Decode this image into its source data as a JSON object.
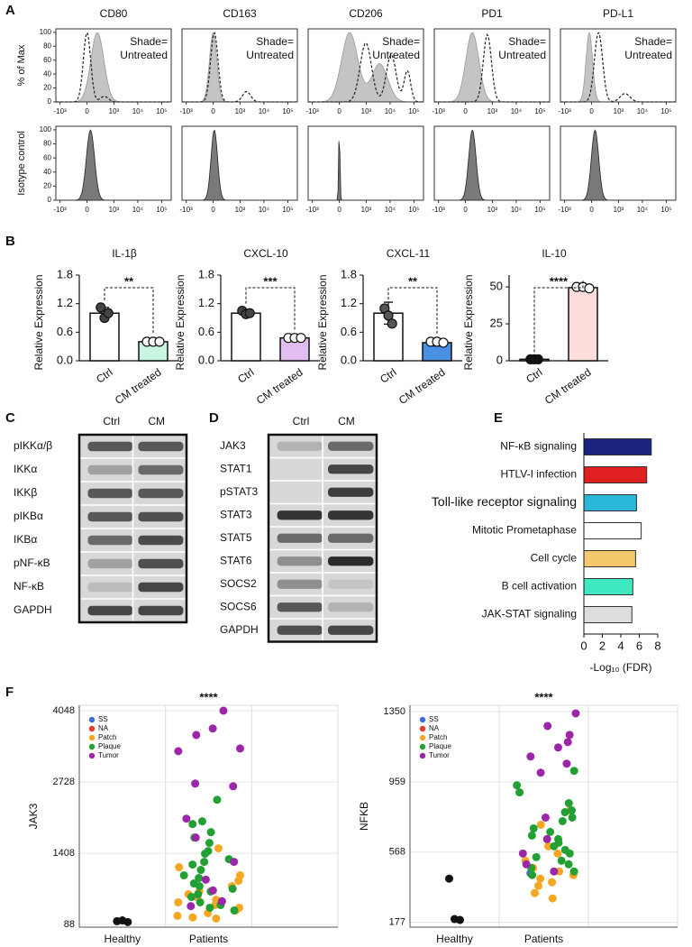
{
  "panel_labels": [
    "A",
    "B",
    "C",
    "D",
    "E",
    "F"
  ],
  "flow": {
    "markers": [
      "CD80",
      "CD163",
      "CD206",
      "PD1",
      "PD-L1"
    ],
    "shade_label": [
      "Shade=",
      "Untreated"
    ],
    "y_label_top": "% of Max",
    "y_label_bottom": "Isotype control",
    "ylim": [
      0,
      105
    ],
    "yticks": [
      0,
      20,
      40,
      60,
      80,
      100
    ],
    "xlim": [
      -1500,
      250000
    ],
    "xticks": [
      {
        "value": -1000,
        "label": "-10³"
      },
      0,
      {
        "value": 1000,
        "label": "10³"
      },
      {
        "value": 10000,
        "label": "10⁴"
      },
      {
        "value": 100000,
        "label": "10⁵"
      }
    ]
  },
  "western_blots": [
    {
      "columns": [
        "Ctrl",
        "CM"
      ],
      "rows": [
        "pIKKα/β",
        "IKKα",
        "IKKβ",
        "pIKBα",
        "IKBα",
        "pNF-κB",
        "NF-κB",
        "GAPDH"
      ]
    },
    {
      "columns": [
        "Ctrl",
        "CM"
      ],
      "rows": [
        "JAK3",
        "STAT1",
        "pSTAT3",
        "STAT3",
        "STAT5",
        "STAT6",
        "SOCS2",
        "SOCS6",
        "GAPDH"
      ]
    }
  ],
  "chart_data": [
    {
      "type": "bar",
      "title": "IL-1β",
      "y_label": "Relative Expression",
      "categories": [
        "Ctrl",
        "CM treated"
      ],
      "values": [
        1.0,
        0.4
      ],
      "errors": [
        0.12,
        0.02
      ],
      "points": [
        [
          1.12,
          0.9,
          1.0
        ],
        [
          0.4,
          0.4,
          0.4
        ]
      ],
      "colors": [
        "#ffffff",
        "#c8f5e0"
      ],
      "point_colors": [
        "#444444",
        "#ffffff"
      ],
      "significance": "**",
      "ylim": [
        0,
        1.8
      ],
      "yticks": [
        {
          "value": 0,
          "label": "0.0"
        },
        0.6,
        1.2,
        1.8
      ]
    },
    {
      "type": "bar",
      "title": "CXCL-10",
      "y_label": "Relative Expression",
      "categories": [
        "Ctrl",
        "CM treated"
      ],
      "values": [
        1.0,
        0.48
      ],
      "errors": [
        0.05,
        0.02
      ],
      "points": [
        [
          1.05,
          0.98,
          1.0
        ],
        [
          0.48,
          0.48,
          0.48
        ]
      ],
      "colors": [
        "#ffffff",
        "#e2bdf2"
      ],
      "point_colors": [
        "#444444",
        "#ffffff"
      ],
      "significance": "***",
      "ylim": [
        0,
        1.8
      ],
      "yticks": [
        {
          "value": 0,
          "label": "0.0"
        },
        0.6,
        1.2,
        1.8
      ]
    },
    {
      "type": "bar",
      "title": "CXCL-11",
      "y_label": "Relative Expression",
      "categories": [
        "Ctrl",
        "CM treated"
      ],
      "values": [
        1.0,
        0.38
      ],
      "errors": [
        0.23,
        0.07
      ],
      "points": [
        [
          1.1,
          0.95,
          0.78
        ],
        [
          0.4,
          0.4,
          0.38
        ]
      ],
      "colors": [
        "#ffffff",
        "#4a90e2"
      ],
      "point_colors": [
        "#555555",
        "#ffffff"
      ],
      "significance": "**",
      "ylim": [
        0,
        1.8
      ],
      "yticks": [
        {
          "value": 0,
          "label": "0.0"
        },
        0.6,
        1.2,
        1.8
      ]
    },
    {
      "type": "bar",
      "title": "IL-10",
      "y_label": "Relative Expression",
      "categories": [
        "Ctrl",
        "CM treated"
      ],
      "values": [
        1.0,
        49.5
      ],
      "errors": [
        0.3,
        1.0
      ],
      "points": [
        [
          1.0,
          1.0,
          1.0
        ],
        [
          50,
          50,
          49
        ]
      ],
      "colors": [
        "#ffffff",
        "#fddcdc"
      ],
      "point_colors": [
        "#111111",
        "#ffffff"
      ],
      "significance": "****",
      "ylim": [
        0,
        58
      ],
      "yticks": [
        0,
        25,
        50
      ]
    },
    {
      "type": "hbar",
      "categories": [
        "NF-κB signaling",
        "HTLV-I infection",
        "Toll-like receptor signaling",
        "Mitotic Prometaphase",
        "Cell cycle",
        "B cell activation",
        "JAK-STAT signaling"
      ],
      "values": [
        7.3,
        6.8,
        5.7,
        6.2,
        5.6,
        5.3,
        5.2
      ],
      "colors": [
        "#1a237e",
        "#e02020",
        "#29b6d8",
        "#ffffff",
        "#f5c96b",
        "#3ee8c0",
        "#dddddd"
      ],
      "xlim": [
        0,
        8
      ],
      "xticks": [
        0,
        2,
        4,
        6,
        8
      ],
      "x_label": "-Log₁₀ (FDR)"
    },
    {
      "type": "strip",
      "y_label": "JAK3",
      "categories": [
        "Healthy",
        "Patients"
      ],
      "significance": "****",
      "ylim": [
        40,
        4150
      ],
      "yticks": [
        88,
        1408,
        2728,
        4048
      ],
      "healthy": {
        "color": "#111111",
        "values": [
          150,
          165,
          135
        ]
      },
      "series": [
        {
          "name": "SS",
          "color": "#3a6fd8",
          "values": [
            600
          ]
        },
        {
          "name": "NA",
          "color": "#e0402a",
          "values": []
        },
        {
          "name": "Patch",
          "color": "#f5a623",
          "values": [
            1500,
            1150,
            1000,
            900,
            800,
            700,
            650,
            600,
            550,
            500,
            450,
            400,
            350,
            300,
            250,
            220,
            200
          ]
        },
        {
          "name": "Plaque",
          "color": "#22a033",
          "values": [
            2400,
            2000,
            1950,
            1800,
            1700,
            1600,
            1450,
            1400,
            1300,
            1250,
            1200,
            1100,
            1000,
            950,
            850,
            800,
            750,
            700,
            650,
            600,
            500,
            450,
            400,
            350
          ]
        },
        {
          "name": "Tumor",
          "color": "#9b27a8",
          "values": [
            4050,
            3720,
            3600,
            3350,
            3300,
            2700,
            2650,
            2050,
            1700,
            1250,
            920,
            720,
            520,
            430
          ]
        }
      ]
    },
    {
      "type": "strip",
      "y_label": "NFKB",
      "categories": [
        "Healthy",
        "Patients"
      ],
      "significance": "****",
      "ylim": [
        150,
        1385
      ],
      "yticks": [
        177,
        568,
        959,
        1350
      ],
      "healthy": {
        "color": "#111111",
        "values": [
          420,
          195,
          190
        ]
      },
      "series": [
        {
          "name": "SS",
          "color": "#3a6fd8",
          "values": [
            450
          ]
        },
        {
          "name": "NA",
          "color": "#e0402a",
          "values": []
        },
        {
          "name": "Patch",
          "color": "#f5a623",
          "values": [
            800,
            720,
            600,
            560,
            520,
            480,
            460,
            440,
            420,
            400,
            380,
            340,
            310
          ]
        },
        {
          "name": "Plaque",
          "color": "#22a033",
          "values": [
            1020,
            940,
            900,
            840,
            800,
            790,
            760,
            740,
            700,
            680,
            660,
            640,
            620,
            600,
            580,
            560,
            540,
            520,
            500,
            480,
            460,
            440
          ]
        },
        {
          "name": "Tumor",
          "color": "#9b27a8",
          "values": [
            1340,
            1270,
            1220,
            1180,
            1150,
            1100,
            1060,
            1010,
            760,
            640,
            560,
            500,
            460
          ]
        }
      ]
    }
  ]
}
